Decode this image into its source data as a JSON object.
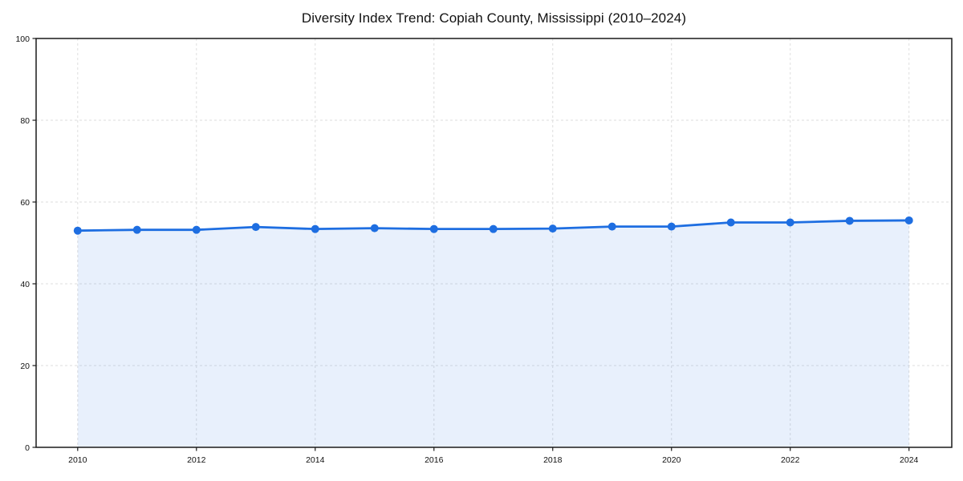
{
  "chart_data": {
    "type": "line",
    "title": "Diversity Index Trend: Copiah County, Mississippi (2010–2024)",
    "xlabel": "",
    "ylabel": "",
    "x": [
      2010,
      2011,
      2012,
      2013,
      2014,
      2015,
      2016,
      2017,
      2018,
      2019,
      2020,
      2021,
      2022,
      2023,
      2024
    ],
    "series": [
      {
        "name": "Diversity Index",
        "values": [
          53.0,
          53.2,
          53.2,
          53.9,
          53.4,
          53.6,
          53.4,
          53.4,
          53.5,
          54.0,
          54.0,
          55.0,
          55.0,
          55.4,
          55.5
        ]
      }
    ],
    "xticks": [
      2010,
      2012,
      2014,
      2016,
      2018,
      2020,
      2022,
      2024
    ],
    "yticks": [
      0,
      20,
      40,
      60,
      80,
      100
    ],
    "xlim": [
      2009.3,
      2024.72
    ],
    "ylim": [
      0,
      100
    ],
    "grid": true,
    "grid_style": "dashed",
    "legend": "none",
    "area_fill": true,
    "marker": "circle",
    "colors": {
      "line": "#1e6ee1",
      "marker": "#1e6ee1",
      "area": "rgba(30,110,225,0.10)",
      "grid": "#dedede",
      "spine": "#1a1a1a",
      "text": "#111111",
      "background": "#ffffff"
    }
  }
}
